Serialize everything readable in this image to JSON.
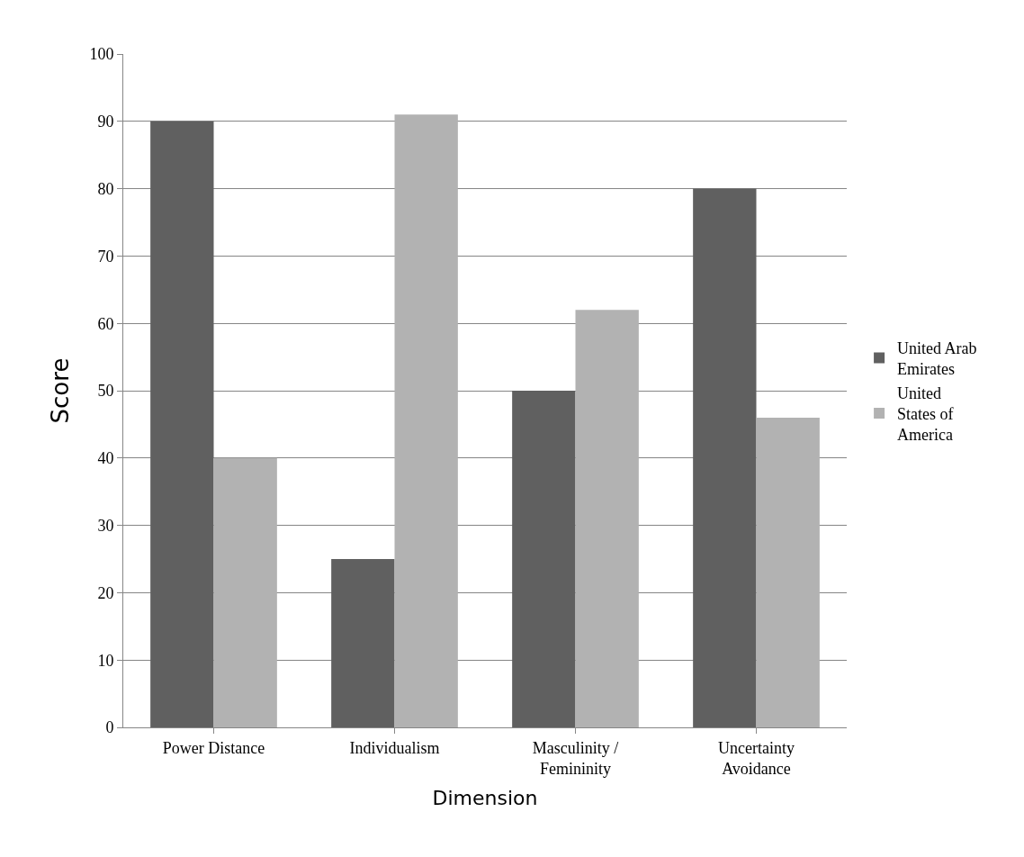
{
  "chart_data": {
    "type": "bar",
    "xlabel": "Dimension",
    "ylabel": "Score",
    "categories": [
      "Power Distance",
      "Individualism",
      "Masculinity / Femininity",
      "Uncertainty Avoidance"
    ],
    "series": [
      {
        "name": "United Arab Emirates",
        "color": "#606060",
        "values": [
          90,
          25,
          50,
          80
        ]
      },
      {
        "name": "United States of America",
        "color": "#b2b2b2",
        "values": [
          40,
          91,
          62,
          46
        ]
      }
    ],
    "ylim": [
      0,
      100
    ],
    "yticks": [
      0,
      10,
      20,
      30,
      40,
      50,
      60,
      70,
      80,
      90,
      100
    ],
    "grid": "y",
    "legend": "right"
  }
}
